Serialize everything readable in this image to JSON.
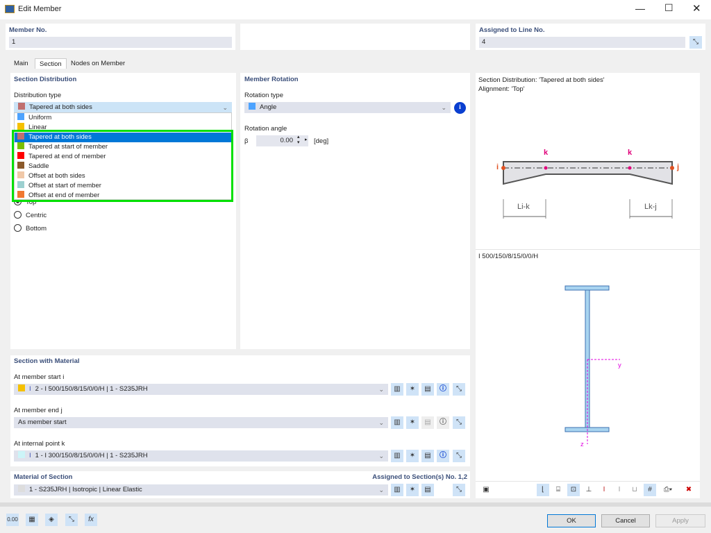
{
  "window": {
    "title": "Edit Member"
  },
  "member_no": {
    "label": "Member No.",
    "value": "1"
  },
  "assigned_line": {
    "label": "Assigned to Line No.",
    "value": "4"
  },
  "tabs": [
    {
      "label": "Main"
    },
    {
      "label": "Section",
      "active": true
    },
    {
      "label": "Nodes on Member"
    }
  ],
  "section_distribution": {
    "header": "Section Distribution",
    "type_label": "Distribution type",
    "selected": "Tapered at both sides",
    "options": [
      {
        "label": "Uniform",
        "color": "#4da3ff"
      },
      {
        "label": "Linear",
        "color": "#f5c000"
      },
      {
        "label": "Tapered at both sides",
        "color": "#c07070"
      },
      {
        "label": "Tapered at start of member",
        "color": "#7bbf00"
      },
      {
        "label": "Tapered at end of member",
        "color": "#ff0000"
      },
      {
        "label": "Saddle",
        "color": "#8b5a2b"
      },
      {
        "label": "Offset at both sides",
        "color": "#f0c8a8"
      },
      {
        "label": "Offset at start of member",
        "color": "#9cd0d0"
      },
      {
        "label": "Offset at end of member",
        "color": "#f07830"
      }
    ],
    "alignment_options": [
      {
        "label": "Top",
        "checked": true
      },
      {
        "label": "Centric"
      },
      {
        "label": "Bottom"
      }
    ]
  },
  "member_rotation": {
    "header": "Member Rotation",
    "type_label": "Rotation type",
    "type_value": "Angle",
    "angle_label": "Rotation angle",
    "symbol": "β",
    "angle_value": "0.00",
    "unit": "[deg]"
  },
  "preview": {
    "line1": "Section Distribution: 'Tapered at both sides'",
    "line2": "Alignment: 'Top'",
    "node_i": "i",
    "node_j": "j",
    "node_k": "k",
    "dim_left": "Li-k",
    "dim_right": "Lk-j",
    "section_name": "I 500/150/8/15/0/0/H",
    "axis_y": "y",
    "axis_z": "z"
  },
  "section_material": {
    "header": "Section with Material",
    "start_label": "At member start i",
    "start_value": "2 - I 500/150/8/15/0/0/H | 1 - S235JRH",
    "start_color": "#f5c000",
    "end_label": "At member end j",
    "end_value": "As member start",
    "k_label": "At internal point k",
    "k_value": "1 - I 300/150/8/15/0/0/H | 1 - S235JRH",
    "k_color": "#ccf4f8"
  },
  "material": {
    "header": "Material of Section",
    "assigned": "Assigned to Section(s) No. 1,2",
    "value": "1 - S235JRH | Isotropic | Linear Elastic"
  },
  "buttons": {
    "ok": "OK",
    "cancel": "Cancel",
    "apply": "Apply"
  },
  "colors": {
    "highlight": "#0078d7",
    "dropdown_outline": "#00e000",
    "accent_node": "#e05020",
    "k_node": "#e0007a"
  }
}
